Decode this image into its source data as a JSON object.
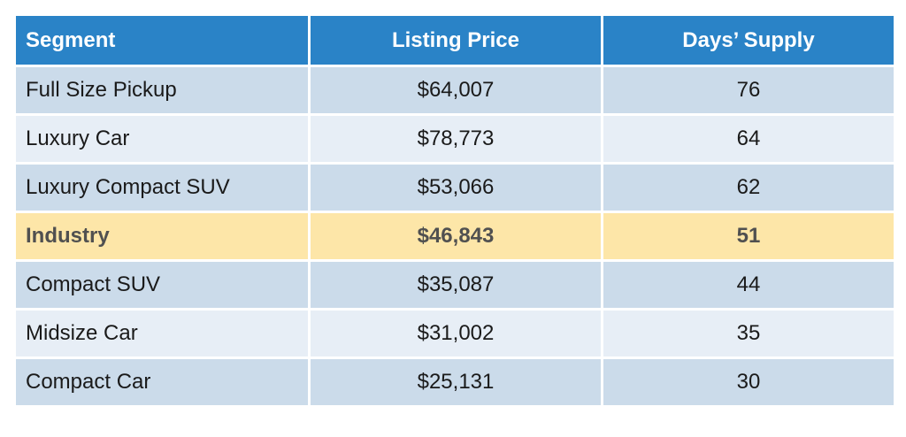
{
  "table": {
    "headers": [
      "Segment",
      "Listing Price",
      "Days’ Supply"
    ],
    "rows": [
      {
        "segment": "Full Size Pickup",
        "price": "$64,007",
        "days": "76",
        "style": "dark"
      },
      {
        "segment": "Luxury Car",
        "price": "$78,773",
        "days": "64",
        "style": "light"
      },
      {
        "segment": "Luxury Compact SUV",
        "price": "$53,066",
        "days": "62",
        "style": "dark"
      },
      {
        "segment": "Industry",
        "price": "$46,843",
        "days": "51",
        "style": "highlight"
      },
      {
        "segment": "Compact SUV",
        "price": "$35,087",
        "days": "44",
        "style": "dark"
      },
      {
        "segment": "Midsize Car",
        "price": "$31,002",
        "days": "35",
        "style": "light"
      },
      {
        "segment": "Compact Car",
        "price": "$25,131",
        "days": "30",
        "style": "dark"
      }
    ],
    "colors": {
      "header_bg": "#2a83c7",
      "row_dark": "#cbdbea",
      "row_light": "#e7eef6",
      "row_highlight": "#fde6a8"
    }
  }
}
